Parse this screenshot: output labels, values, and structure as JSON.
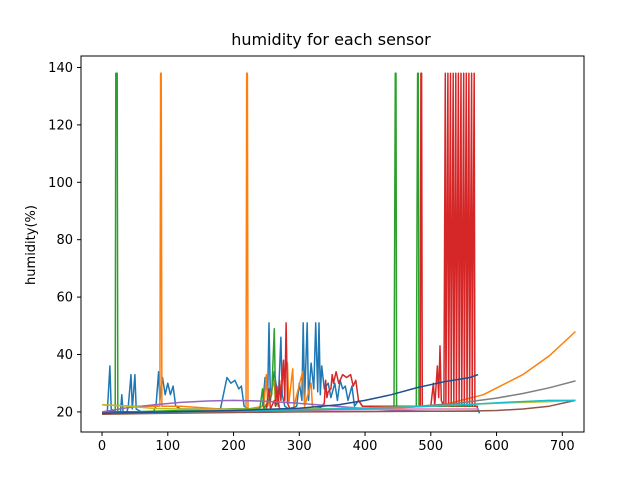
{
  "chart_data": {
    "type": "line",
    "title": "humidity for each sensor",
    "xlabel": "",
    "ylabel": "humidity(%)",
    "xlim": [
      -32,
      733
    ],
    "ylim": [
      13,
      144
    ],
    "xticks": [
      0,
      100,
      200,
      300,
      400,
      500,
      600,
      700
    ],
    "yticks": [
      20,
      40,
      60,
      80,
      100,
      120,
      140
    ],
    "grid": false,
    "legend": "none",
    "series": [
      {
        "color": "#1f77b4",
        "points": [
          [
            0,
            19.5
          ],
          [
            8,
            20
          ],
          [
            12,
            36
          ],
          [
            14,
            21
          ],
          [
            20,
            20
          ],
          [
            28,
            20
          ],
          [
            30,
            26
          ],
          [
            32,
            20
          ],
          [
            38,
            20
          ],
          [
            40,
            22
          ],
          [
            44,
            33
          ],
          [
            46,
            21
          ],
          [
            50,
            33
          ],
          [
            52,
            21
          ],
          [
            60,
            20
          ],
          [
            70,
            20
          ],
          [
            78,
            20
          ],
          [
            82,
            22
          ],
          [
            86,
            34
          ],
          [
            88,
            24
          ],
          [
            92,
            32
          ],
          [
            96,
            26
          ],
          [
            100,
            30
          ],
          [
            104,
            26
          ],
          [
            108,
            29
          ],
          [
            112,
            22
          ],
          [
            120,
            21
          ],
          [
            140,
            21
          ],
          [
            160,
            21
          ],
          [
            180,
            21
          ],
          [
            190,
            32
          ],
          [
            196,
            30
          ],
          [
            202,
            31
          ],
          [
            208,
            28
          ],
          [
            212,
            29
          ],
          [
            216,
            22
          ],
          [
            222,
            21
          ],
          [
            232,
            21
          ],
          [
            244,
            22
          ],
          [
            248,
            32
          ],
          [
            252,
            26
          ],
          [
            254,
            51
          ],
          [
            256,
            24
          ],
          [
            262,
            34
          ],
          [
            268,
            24
          ],
          [
            272,
            46
          ],
          [
            274,
            26
          ],
          [
            278,
            22
          ],
          [
            284,
            21
          ],
          [
            296,
            22
          ],
          [
            300,
            30
          ],
          [
            304,
            24
          ],
          [
            306,
            51
          ],
          [
            308,
            24
          ],
          [
            312,
            51
          ],
          [
            314,
            24
          ],
          [
            318,
            37
          ],
          [
            322,
            28
          ],
          [
            325,
            51
          ],
          [
            328,
            27
          ],
          [
            330,
            51
          ],
          [
            332,
            26
          ],
          [
            334,
            36
          ],
          [
            338,
            28
          ],
          [
            344,
            30
          ],
          [
            348,
            25
          ],
          [
            354,
            30
          ],
          [
            358,
            24
          ],
          [
            362,
            31
          ],
          [
            366,
            28
          ],
          [
            370,
            29
          ],
          [
            374,
            24
          ],
          [
            380,
            29
          ],
          [
            384,
            22
          ],
          [
            390,
            24
          ],
          [
            396,
            22
          ],
          [
            410,
            22
          ],
          [
            430,
            22
          ],
          [
            450,
            22
          ],
          [
            470,
            22
          ],
          [
            490,
            22
          ],
          [
            510,
            22
          ],
          [
            530,
            22
          ],
          [
            550,
            22
          ],
          [
            570,
            22
          ],
          [
            574,
            19.5
          ]
        ]
      },
      {
        "color": "#ff7f0e",
        "points": [
          [
            0,
            22.5
          ],
          [
            45,
            22
          ],
          [
            88,
            22
          ],
          [
            89,
            138
          ],
          [
            90,
            138
          ],
          [
            91,
            22
          ],
          [
            120,
            22
          ],
          [
            180,
            21
          ],
          [
            219,
            21
          ],
          [
            220,
            138
          ],
          [
            221,
            138
          ],
          [
            222,
            21
          ],
          [
            246,
            22
          ],
          [
            250,
            33
          ],
          [
            252,
            22
          ],
          [
            262,
            31
          ],
          [
            264,
            22
          ],
          [
            282,
            37
          ],
          [
            284,
            23
          ],
          [
            290,
            35
          ],
          [
            292,
            22
          ],
          [
            305,
            34
          ],
          [
            308,
            22
          ],
          [
            318,
            30
          ],
          [
            320,
            22
          ],
          [
            340,
            21
          ],
          [
            400,
            21
          ],
          [
            460,
            21.5
          ],
          [
            520,
            22.5
          ],
          [
            580,
            26
          ],
          [
            640,
            33
          ],
          [
            680,
            39.5
          ],
          [
            720,
            48
          ]
        ]
      },
      {
        "color": "#2ca02c",
        "points": [
          [
            0,
            20
          ],
          [
            20,
            20
          ],
          [
            21,
            138
          ],
          [
            23,
            138
          ],
          [
            24,
            20
          ],
          [
            40,
            20
          ],
          [
            120,
            20.5
          ],
          [
            200,
            21
          ],
          [
            240,
            21
          ],
          [
            244,
            28
          ],
          [
            246,
            21
          ],
          [
            258,
            26
          ],
          [
            262,
            49
          ],
          [
            264,
            22
          ],
          [
            268,
            24
          ],
          [
            270,
            21
          ],
          [
            300,
            21
          ],
          [
            380,
            21
          ],
          [
            440,
            21
          ],
          [
            444,
            22
          ],
          [
            446,
            138
          ],
          [
            447,
            138
          ],
          [
            448,
            22
          ],
          [
            470,
            22
          ],
          [
            478,
            22
          ],
          [
            480,
            138
          ],
          [
            481,
            138
          ],
          [
            482,
            22
          ],
          [
            500,
            22
          ],
          [
            540,
            22
          ],
          [
            572,
            22
          ]
        ]
      },
      {
        "color": "#d62728",
        "points": [
          [
            0,
            20
          ],
          [
            150,
            20
          ],
          [
            240,
            20.5
          ],
          [
            250,
            21
          ],
          [
            254,
            28
          ],
          [
            256,
            21
          ],
          [
            262,
            24
          ],
          [
            264,
            22
          ],
          [
            266,
            29
          ],
          [
            268,
            22
          ],
          [
            270,
            31
          ],
          [
            272,
            24
          ],
          [
            276,
            38
          ],
          [
            278,
            24
          ],
          [
            280,
            51
          ],
          [
            282,
            23
          ],
          [
            286,
            21
          ],
          [
            310,
            21
          ],
          [
            330,
            21
          ],
          [
            338,
            23
          ],
          [
            340,
            31
          ],
          [
            342,
            25
          ],
          [
            344,
            27
          ],
          [
            348,
            28
          ],
          [
            350,
            33
          ],
          [
            352,
            30
          ],
          [
            356,
            34
          ],
          [
            360,
            30
          ],
          [
            366,
            33
          ],
          [
            372,
            32
          ],
          [
            378,
            33
          ],
          [
            382,
            29
          ],
          [
            386,
            31
          ],
          [
            390,
            24
          ],
          [
            396,
            22
          ],
          [
            420,
            22
          ],
          [
            440,
            22
          ],
          [
            470,
            22
          ],
          [
            484,
            22
          ],
          [
            485,
            138
          ],
          [
            486,
            138
          ],
          [
            487,
            22
          ],
          [
            500,
            22
          ],
          [
            504,
            30
          ],
          [
            506,
            22
          ],
          [
            510,
            36
          ],
          [
            512,
            25
          ],
          [
            514,
            43
          ],
          [
            516,
            24
          ],
          [
            520,
            22
          ],
          [
            522,
            138
          ],
          [
            523,
            22
          ],
          [
            526,
            138
          ],
          [
            527,
            22
          ],
          [
            530,
            138
          ],
          [
            531,
            22
          ],
          [
            534,
            138
          ],
          [
            535,
            22
          ],
          [
            538,
            138
          ],
          [
            539,
            22
          ],
          [
            542,
            138
          ],
          [
            543,
            22
          ],
          [
            546,
            138
          ],
          [
            547,
            22
          ],
          [
            550,
            138
          ],
          [
            551,
            22
          ],
          [
            554,
            138
          ],
          [
            555,
            22
          ],
          [
            558,
            138
          ],
          [
            559,
            22
          ],
          [
            562,
            138
          ],
          [
            563,
            22
          ],
          [
            566,
            138
          ],
          [
            567,
            22
          ],
          [
            572,
            22
          ]
        ]
      },
      {
        "color": "#9467bd",
        "points": [
          [
            0,
            20
          ],
          [
            40,
            21.5
          ],
          [
            80,
            22.5
          ],
          [
            120,
            23.3
          ],
          [
            160,
            23.8
          ],
          [
            200,
            24
          ],
          [
            240,
            23.8
          ],
          [
            280,
            23.3
          ],
          [
            320,
            22.6
          ],
          [
            360,
            21.9
          ],
          [
            400,
            21.2
          ],
          [
            440,
            20.6
          ],
          [
            480,
            20.3
          ],
          [
            520,
            20.2
          ],
          [
            560,
            20.2
          ],
          [
            572,
            20.2
          ]
        ]
      },
      {
        "color": "#8c564b",
        "points": [
          [
            0,
            19.2
          ],
          [
            100,
            19.5
          ],
          [
            200,
            19.8
          ],
          [
            300,
            20
          ],
          [
            400,
            20.1
          ],
          [
            500,
            20.2
          ],
          [
            560,
            20.3
          ],
          [
            600,
            20.5
          ],
          [
            640,
            21
          ],
          [
            680,
            22
          ],
          [
            720,
            24
          ]
        ]
      },
      {
        "color": "#e377c2",
        "points": [
          [
            0,
            19.5
          ],
          [
            100,
            20
          ],
          [
            200,
            20.5
          ],
          [
            300,
            20.5
          ],
          [
            400,
            20.8
          ],
          [
            480,
            21
          ],
          [
            572,
            21
          ]
        ]
      },
      {
        "color": "#7f7f7f",
        "points": [
          [
            0,
            19.5
          ],
          [
            100,
            19.8
          ],
          [
            200,
            20.2
          ],
          [
            300,
            20.6
          ],
          [
            400,
            21.2
          ],
          [
            480,
            22
          ],
          [
            540,
            23
          ],
          [
            600,
            24.8
          ],
          [
            640,
            26.4
          ],
          [
            680,
            28.4
          ],
          [
            720,
            30.8
          ]
        ]
      },
      {
        "color": "#bcbd22",
        "points": [
          [
            0,
            22.5
          ],
          [
            40,
            22
          ],
          [
            80,
            21.2
          ],
          [
            120,
            21
          ],
          [
            200,
            20.8
          ],
          [
            280,
            21
          ],
          [
            360,
            21.2
          ],
          [
            440,
            21.6
          ],
          [
            500,
            22
          ],
          [
            560,
            22.6
          ],
          [
            600,
            23
          ],
          [
            640,
            23.3
          ],
          [
            680,
            23.6
          ],
          [
            720,
            24
          ]
        ]
      },
      {
        "color": "#17becf",
        "points": [
          [
            0,
            19.5
          ],
          [
            100,
            20
          ],
          [
            200,
            20.4
          ],
          [
            300,
            20.8
          ],
          [
            400,
            21.3
          ],
          [
            480,
            21.8
          ],
          [
            560,
            22.6
          ],
          [
            620,
            23.4
          ],
          [
            680,
            24
          ],
          [
            720,
            24
          ]
        ]
      },
      {
        "color": "#1f4e8c",
        "points": [
          [
            0,
            19.5
          ],
          [
            100,
            20
          ],
          [
            200,
            20.5
          ],
          [
            300,
            21.3
          ],
          [
            360,
            22.5
          ],
          [
            400,
            24
          ],
          [
            440,
            26
          ],
          [
            480,
            28.5
          ],
          [
            520,
            30.5
          ],
          [
            560,
            32
          ],
          [
            572,
            33
          ]
        ]
      }
    ]
  }
}
